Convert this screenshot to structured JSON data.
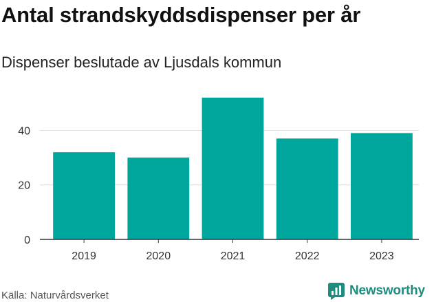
{
  "title": "Antal strandskyddsdispenser per år",
  "subtitle": "Dispenser beslutade av Ljusdals kommun",
  "source": "Källa: Naturvårdsverket",
  "brand": {
    "name": "Newsworthy",
    "icon": "newsworthy-logo-icon",
    "color": "#1f8c80"
  },
  "colors": {
    "bar": "#00a69c",
    "grid": "#dddddd",
    "axis": "#333333",
    "tick_text": "#333333"
  },
  "chart_data": {
    "type": "bar",
    "title": "Antal strandskyddsdispenser per år",
    "subtitle": "Dispenser beslutade av Ljusdals kommun",
    "categories": [
      "2019",
      "2020",
      "2021",
      "2022",
      "2023"
    ],
    "values": [
      32,
      30,
      52,
      37,
      39
    ],
    "xlabel": "",
    "ylabel": "",
    "ylim": [
      0,
      55
    ],
    "yticks": [
      0,
      20,
      40
    ],
    "grid": true,
    "legend": "none"
  }
}
